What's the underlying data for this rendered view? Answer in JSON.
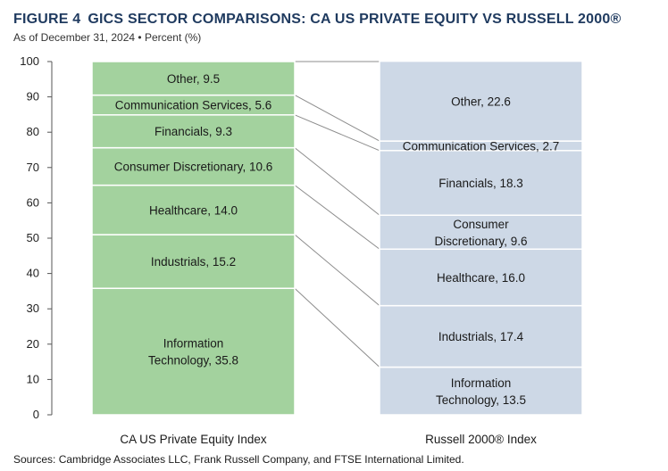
{
  "figure": {
    "label": "FIGURE 4",
    "title": "GICS SECTOR COMPARISONS: CA US PRIVATE EQUITY VS RUSSELL 2000®",
    "subtitle": "As of December 31, 2024 • Percent (%)",
    "source": "Sources: Cambridge Associates LLC,  Frank Russell Company, and FTSE International Limited."
  },
  "colors": {
    "left_bar": "#a3d29e",
    "right_bar": "#cdd8e6",
    "connector": "#8c8c8c",
    "axis": "#555555",
    "title": "#1f3a5f"
  },
  "chart_data": {
    "type": "bar",
    "stacked": true,
    "yaxis": {
      "ylim": [
        0,
        100
      ],
      "ticks": [
        0,
        10,
        20,
        30,
        40,
        50,
        60,
        70,
        80,
        90,
        100
      ]
    },
    "categories": [
      "CA US Private Equity Index",
      "Russell 2000® Index"
    ],
    "series": [
      {
        "key": "it",
        "label_lines": [
          [
            "Information",
            "Technology, 35.8"
          ],
          [
            "Information",
            "Technology, 13.5"
          ]
        ],
        "values": [
          35.8,
          13.5
        ]
      },
      {
        "key": "ind",
        "label_lines": [
          [
            "Industrials, 15.2"
          ],
          [
            "Industrials, 17.4"
          ]
        ],
        "values": [
          15.2,
          17.4
        ]
      },
      {
        "key": "hc",
        "label_lines": [
          [
            "Healthcare, 14.0"
          ],
          [
            "Healthcare, 16.0"
          ]
        ],
        "values": [
          14.0,
          16.0
        ]
      },
      {
        "key": "cd",
        "label_lines": [
          [
            "Consumer Discretionary, 10.6"
          ],
          [
            "Consumer",
            "Discretionary, 9.6"
          ]
        ],
        "values": [
          10.6,
          9.6
        ]
      },
      {
        "key": "fin",
        "label_lines": [
          [
            "Financials, 9.3"
          ],
          [
            "Financials, 18.3"
          ]
        ],
        "values": [
          9.3,
          18.3
        ]
      },
      {
        "key": "cs",
        "label_lines": [
          [
            "Communication Services, 5.6"
          ],
          [
            "Communication Services, 2.7"
          ]
        ],
        "values": [
          5.6,
          2.7
        ]
      },
      {
        "key": "oth",
        "label_lines": [
          [
            "Other, 9.5"
          ],
          [
            "Other, 22.6"
          ]
        ],
        "values": [
          9.5,
          22.6
        ]
      }
    ]
  }
}
